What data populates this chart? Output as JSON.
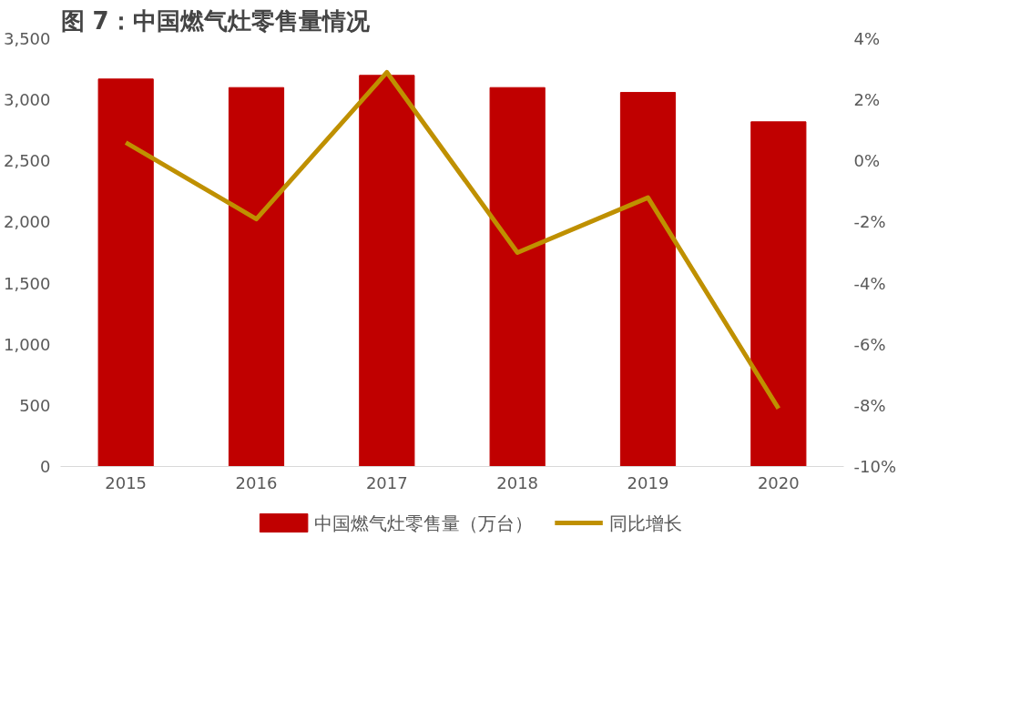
{
  "chart_data": {
    "type": "bar",
    "title": "图 7：中国燃气灶零售量情况",
    "categories": [
      "2015",
      "2016",
      "2017",
      "2018",
      "2019",
      "2020"
    ],
    "series": [
      {
        "name": "中国燃气灶零售量（万台）",
        "color": "#c00000",
        "values": [
          3170,
          3100,
          3200,
          3100,
          3060,
          2820
        ]
      },
      {
        "name": "同比增长",
        "color": "#bf9000",
        "type": "line",
        "axis": "y2",
        "values": [
          0.6,
          -1.9,
          2.9,
          -3.0,
          -1.2,
          -8.1
        ]
      }
    ],
    "ylim": [
      0,
      3500
    ],
    "yticks": [
      0,
      500,
      {
        "value": 1000,
        "label": "1,000"
      },
      {
        "value": 1500,
        "label": "1,500"
      },
      {
        "value": 2000,
        "label": "2,000"
      },
      {
        "value": 2500,
        "label": "2,500"
      },
      {
        "value": 3000,
        "label": "3,000"
      },
      {
        "value": 3500,
        "label": "3,500"
      }
    ],
    "y2lim": [
      -10,
      4
    ],
    "y2ticks": [
      {
        "value": -10,
        "label": "-10%"
      },
      {
        "value": -8,
        "label": "-8%"
      },
      {
        "value": -6,
        "label": "-6%"
      },
      {
        "value": -4,
        "label": "-4%"
      },
      {
        "value": -2,
        "label": "-2%"
      },
      {
        "value": 0,
        "label": "0%"
      },
      {
        "value": 2,
        "label": "2%"
      },
      {
        "value": 4,
        "label": "4%"
      }
    ],
    "grid": false,
    "legend": "bottom",
    "marker": "none",
    "line_style": "solid"
  }
}
